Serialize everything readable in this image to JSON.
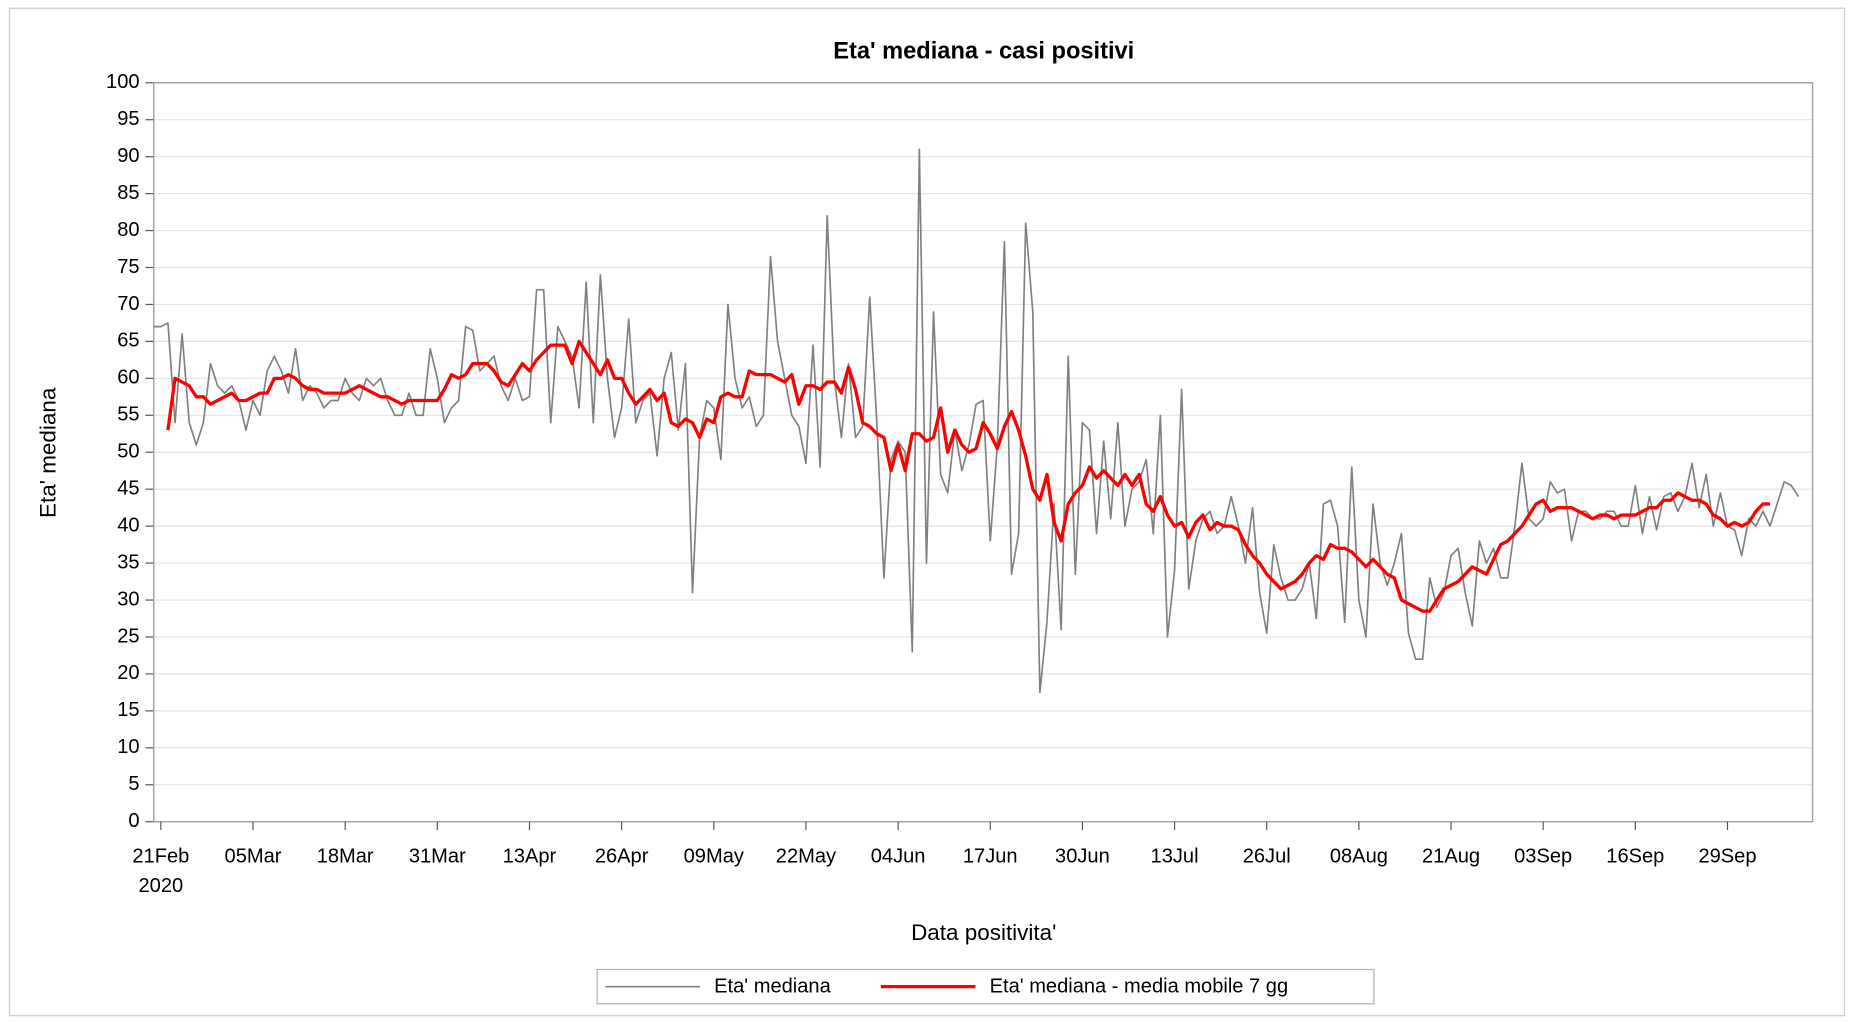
{
  "chart_data": {
    "type": "line",
    "title": "Eta' mediana - casi positivi",
    "x_label": "Data positivita'",
    "y_label": "Eta' mediana",
    "x": [
      "2020-02-20",
      "2020-02-21",
      "2020-02-22",
      "2020-02-23",
      "2020-02-24",
      "2020-02-25",
      "2020-02-26",
      "2020-02-27",
      "2020-02-28",
      "2020-02-29",
      "2020-03-01",
      "2020-03-02",
      "2020-03-03",
      "2020-03-04",
      "2020-03-05",
      "2020-03-06",
      "2020-03-07",
      "2020-03-08",
      "2020-03-09",
      "2020-03-10",
      "2020-03-11",
      "2020-03-12",
      "2020-03-13",
      "2020-03-14",
      "2020-03-15",
      "2020-03-16",
      "2020-03-17",
      "2020-03-18",
      "2020-03-19",
      "2020-03-20",
      "2020-03-21",
      "2020-03-22",
      "2020-03-23",
      "2020-03-24",
      "2020-03-25",
      "2020-03-26",
      "2020-03-27",
      "2020-03-28",
      "2020-03-29",
      "2020-03-30",
      "2020-03-31",
      "2020-04-01",
      "2020-04-02",
      "2020-04-03",
      "2020-04-04",
      "2020-04-05",
      "2020-04-06",
      "2020-04-07",
      "2020-04-08",
      "2020-04-09",
      "2020-04-10",
      "2020-04-11",
      "2020-04-12",
      "2020-04-13",
      "2020-04-14",
      "2020-04-15",
      "2020-04-16",
      "2020-04-17",
      "2020-04-18",
      "2020-04-19",
      "2020-04-20",
      "2020-04-21",
      "2020-04-22",
      "2020-04-23",
      "2020-04-24",
      "2020-04-25",
      "2020-04-26",
      "2020-04-27",
      "2020-04-28",
      "2020-04-29",
      "2020-04-30",
      "2020-05-01",
      "2020-05-02",
      "2020-05-03",
      "2020-05-04",
      "2020-05-05",
      "2020-05-06",
      "2020-05-07",
      "2020-05-08",
      "2020-05-09",
      "2020-05-10",
      "2020-05-11",
      "2020-05-12",
      "2020-05-13",
      "2020-05-14",
      "2020-05-15",
      "2020-05-16",
      "2020-05-17",
      "2020-05-18",
      "2020-05-19",
      "2020-05-20",
      "2020-05-21",
      "2020-05-22",
      "2020-05-23",
      "2020-05-24",
      "2020-05-25",
      "2020-05-26",
      "2020-05-27",
      "2020-05-28",
      "2020-05-29",
      "2020-05-30",
      "2020-05-31",
      "2020-06-01",
      "2020-06-02",
      "2020-06-03",
      "2020-06-04",
      "2020-06-05",
      "2020-06-06",
      "2020-06-07",
      "2020-06-08",
      "2020-06-09",
      "2020-06-10",
      "2020-06-11",
      "2020-06-12",
      "2020-06-13",
      "2020-06-14",
      "2020-06-15",
      "2020-06-16",
      "2020-06-17",
      "2020-06-18",
      "2020-06-19",
      "2020-06-20",
      "2020-06-21",
      "2020-06-22",
      "2020-06-23",
      "2020-06-24",
      "2020-06-25",
      "2020-06-26",
      "2020-06-27",
      "2020-06-28",
      "2020-06-29",
      "2020-06-30",
      "2020-07-01",
      "2020-07-02",
      "2020-07-03",
      "2020-07-04",
      "2020-07-05",
      "2020-07-06",
      "2020-07-07",
      "2020-07-08",
      "2020-07-09",
      "2020-07-10",
      "2020-07-11",
      "2020-07-12",
      "2020-07-13",
      "2020-07-14",
      "2020-07-15",
      "2020-07-16",
      "2020-07-17",
      "2020-07-18",
      "2020-07-19",
      "2020-07-20",
      "2020-07-21",
      "2020-07-22",
      "2020-07-23",
      "2020-07-24",
      "2020-07-25",
      "2020-07-26",
      "2020-07-27",
      "2020-07-28",
      "2020-07-29",
      "2020-07-30",
      "2020-07-31",
      "2020-08-01",
      "2020-08-02",
      "2020-08-03",
      "2020-08-04",
      "2020-08-05",
      "2020-08-06",
      "2020-08-07",
      "2020-08-08",
      "2020-08-09",
      "2020-08-10",
      "2020-08-11",
      "2020-08-12",
      "2020-08-13",
      "2020-08-14",
      "2020-08-15",
      "2020-08-16",
      "2020-08-17",
      "2020-08-18",
      "2020-08-19",
      "2020-08-20",
      "2020-08-21",
      "2020-08-22",
      "2020-08-23",
      "2020-08-24",
      "2020-08-25",
      "2020-08-26",
      "2020-08-27",
      "2020-08-28",
      "2020-08-29",
      "2020-08-30",
      "2020-08-31",
      "2020-09-01",
      "2020-09-02",
      "2020-09-03",
      "2020-09-04",
      "2020-09-05",
      "2020-09-06",
      "2020-09-07",
      "2020-09-08",
      "2020-09-09",
      "2020-09-10",
      "2020-09-11",
      "2020-09-12",
      "2020-09-13",
      "2020-09-14",
      "2020-09-15",
      "2020-09-16",
      "2020-09-17",
      "2020-09-18",
      "2020-09-19",
      "2020-09-20",
      "2020-09-21",
      "2020-09-22",
      "2020-09-23",
      "2020-09-24",
      "2020-09-25",
      "2020-09-26",
      "2020-09-27",
      "2020-09-28",
      "2020-09-29",
      "2020-09-30",
      "2020-10-01",
      "2020-10-02",
      "2020-10-03",
      "2020-10-04",
      "2020-10-05",
      "2020-10-06",
      "2020-10-07",
      "2020-10-08",
      "2020-10-09"
    ],
    "xlim": [
      "2020-02-20",
      "2020-10-11"
    ],
    "xticks": [
      {
        "value": "2020-02-21",
        "label": "21Feb"
      },
      {
        "value": "2020-03-05",
        "label": "05Mar"
      },
      {
        "value": "2020-03-18",
        "label": "18Mar"
      },
      {
        "value": "2020-03-31",
        "label": "31Mar"
      },
      {
        "value": "2020-04-13",
        "label": "13Apr"
      },
      {
        "value": "2020-04-26",
        "label": "26Apr"
      },
      {
        "value": "2020-05-09",
        "label": "09May"
      },
      {
        "value": "2020-05-22",
        "label": "22May"
      },
      {
        "value": "2020-06-04",
        "label": "04Jun"
      },
      {
        "value": "2020-06-17",
        "label": "17Jun"
      },
      {
        "value": "2020-06-30",
        "label": "30Jun"
      },
      {
        "value": "2020-07-13",
        "label": "13Jul"
      },
      {
        "value": "2020-07-26",
        "label": "26Jul"
      },
      {
        "value": "2020-08-08",
        "label": "08Aug"
      },
      {
        "value": "2020-08-21",
        "label": "21Aug"
      },
      {
        "value": "2020-09-03",
        "label": "03Sep"
      },
      {
        "value": "2020-09-16",
        "label": "16Sep"
      },
      {
        "value": "2020-09-29",
        "label": "29Sep"
      }
    ],
    "x_year_label": "2020",
    "ylim": [
      0,
      100
    ],
    "yticks": [
      0,
      5,
      10,
      15,
      20,
      25,
      30,
      35,
      40,
      45,
      50,
      55,
      60,
      65,
      70,
      75,
      80,
      85,
      90,
      95,
      100
    ],
    "grid": true,
    "series": [
      {
        "name": "Eta' mediana",
        "color": "#808080",
        "values": [
          67,
          67,
          67.5,
          54,
          66,
          54,
          51,
          54,
          62,
          59,
          58,
          59,
          57,
          53,
          57,
          55,
          61,
          63,
          61,
          58,
          64,
          57,
          59,
          58,
          56,
          57,
          57,
          60,
          58,
          57,
          60,
          59,
          60,
          57,
          55,
          55,
          58,
          55,
          55,
          64,
          60,
          54,
          56,
          57,
          67,
          66.5,
          61,
          62,
          63,
          59,
          57,
          60,
          57,
          57.5,
          72,
          72,
          54,
          67,
          65,
          63,
          56,
          73,
          54,
          74,
          60,
          52,
          56,
          68,
          54,
          57,
          58,
          49.5,
          60,
          63.5,
          53,
          62,
          31,
          52,
          57,
          56,
          49,
          70,
          60,
          56,
          57.5,
          53.5,
          55,
          76.5,
          65,
          60,
          55,
          53.5,
          48.5,
          64.5,
          48,
          82,
          60,
          52,
          62,
          52,
          53.5,
          71,
          54,
          33,
          49,
          51.5,
          50,
          23,
          91,
          35,
          69,
          47,
          44.5,
          53,
          47.5,
          51,
          56.5,
          57,
          38,
          51,
          78.5,
          33.5,
          39,
          81,
          69,
          17.5,
          27,
          43,
          26,
          63,
          33.5,
          54,
          53,
          39,
          51.5,
          41,
          54,
          40,
          45,
          46,
          49,
          39,
          55,
          25,
          34,
          58.5,
          31.5,
          38,
          41,
          42,
          39,
          40,
          44,
          40,
          35,
          42.5,
          31,
          25.5,
          37.5,
          33,
          30,
          30,
          31.5,
          35,
          27.5,
          43,
          43.5,
          40,
          27,
          48,
          30,
          25,
          43,
          35,
          32,
          35,
          39,
          25.5,
          22,
          22,
          33,
          29,
          31,
          36,
          37,
          31,
          26.5,
          38,
          35,
          37,
          33,
          33,
          40,
          48.5,
          41,
          40,
          41,
          46,
          44.5,
          45,
          38,
          42,
          42,
          41,
          41,
          42,
          42,
          40,
          40,
          45.5,
          39,
          44,
          39.5,
          44,
          44.5,
          42,
          44,
          48.5,
          42.5,
          47,
          40,
          44.5,
          40,
          39.5,
          36,
          41,
          40,
          42,
          40,
          43,
          46,
          45.5,
          44
        ]
      },
      {
        "name": "Eta' mediana - media mobile 7 gg",
        "color": "#ff0000",
        "values": [
          null,
          null,
          53,
          60,
          59.5,
          59,
          57.5,
          57.5,
          56.5,
          57,
          57.5,
          58,
          57,
          57,
          57.5,
          58,
          58,
          60,
          60,
          60.5,
          60,
          59,
          58.5,
          58.5,
          58,
          58,
          58,
          58,
          58.5,
          59,
          58.5,
          58,
          57.5,
          57.5,
          57,
          56.5,
          57,
          57,
          57,
          57,
          57,
          58.5,
          60.5,
          60,
          60.5,
          62,
          62,
          62,
          61,
          59.5,
          59,
          60.5,
          62,
          61,
          62.5,
          63.5,
          64.5,
          64.5,
          64.5,
          62,
          65,
          63.5,
          62,
          60.5,
          62.5,
          60,
          60,
          58,
          56.5,
          57.5,
          58.5,
          57,
          58,
          54,
          53.5,
          54.5,
          54,
          52,
          54.5,
          54,
          57.5,
          58,
          57.5,
          57.5,
          61,
          60.5,
          60.5,
          60.5,
          60,
          59.5,
          60.5,
          56.5,
          59,
          59,
          58.5,
          59.5,
          59.5,
          58,
          61.5,
          58.5,
          54,
          53.5,
          52.5,
          52,
          47.5,
          51,
          47.5,
          52.5,
          52.5,
          51.5,
          52,
          56,
          50,
          53,
          51,
          50,
          50.5,
          54,
          52.5,
          50.5,
          53.5,
          55.5,
          53,
          49.5,
          45,
          43.5,
          47,
          40.5,
          38,
          43,
          44.5,
          45.5,
          48,
          46.5,
          47.5,
          46.5,
          45.5,
          47,
          45.5,
          47,
          43,
          42,
          44,
          41.5,
          40,
          40.5,
          38.5,
          40.5,
          41.5,
          39.5,
          40.5,
          40,
          40,
          39.5,
          37.5,
          36,
          35,
          33.5,
          32.5,
          31.5,
          32,
          32.5,
          33.5,
          35,
          36,
          35.5,
          37.5,
          37,
          37,
          36.5,
          35.5,
          34.5,
          35.5,
          34.5,
          33.5,
          33,
          30,
          29.5,
          29,
          28.5,
          28.5,
          30,
          31.5,
          32,
          32.5,
          33.5,
          34.5,
          34,
          33.5,
          35.5,
          37.5,
          38,
          39,
          40,
          41.5,
          43,
          43.5,
          42,
          42.5,
          42.5,
          42.5,
          42,
          41.5,
          41,
          41.5,
          41.5,
          41,
          41.5,
          41.5,
          41.5,
          42,
          42.5,
          42.5,
          43.5,
          43.5,
          44.5,
          44,
          43.5,
          43.5,
          43,
          41.5,
          41,
          40,
          40.5,
          40,
          40.5,
          42,
          43,
          43,
          null,
          null,
          null,
          null
        ]
      }
    ]
  }
}
